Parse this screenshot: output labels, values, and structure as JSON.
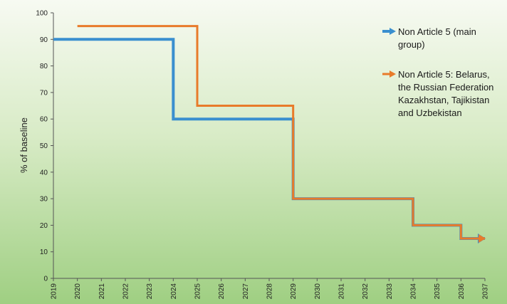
{
  "chart_data": {
    "type": "line",
    "ylabel": "% of baseline",
    "xlabel": "",
    "ylim": [
      0,
      100
    ],
    "xlim": [
      2019,
      2037
    ],
    "yticks": [
      0,
      10,
      20,
      30,
      40,
      50,
      60,
      70,
      80,
      90,
      100
    ],
    "xticks": [
      2019,
      2020,
      2021,
      2022,
      2023,
      2024,
      2025,
      2026,
      2027,
      2028,
      2029,
      2030,
      2031,
      2032,
      2033,
      2034,
      2035,
      2036,
      2037
    ],
    "step": true,
    "legend_position": "top-right",
    "grid": false,
    "series": [
      {
        "name": "Non Article 5 (main group)",
        "legend_lines": [
          "Non Article 5 (main",
          "group)"
        ],
        "color": "#3a8fcf",
        "x": [
          2019,
          2024,
          2029,
          2034,
          2036,
          2037
        ],
        "y": [
          90,
          60,
          30,
          20,
          15,
          15
        ]
      },
      {
        "name": "Non Article 5: Belarus, the Russian Federation Kazakhstan, Tajikistan and Uzbekistan",
        "legend_lines": [
          "Non Article 5: Belarus,",
          "the Russian Federation",
          "Kazakhstan, Tajikistan",
          "and Uzbekistan"
        ],
        "color": "#e87b2a",
        "x": [
          2020,
          2025,
          2029,
          2034,
          2036,
          2037
        ],
        "y": [
          95,
          65,
          30,
          20,
          15,
          15
        ]
      }
    ]
  }
}
